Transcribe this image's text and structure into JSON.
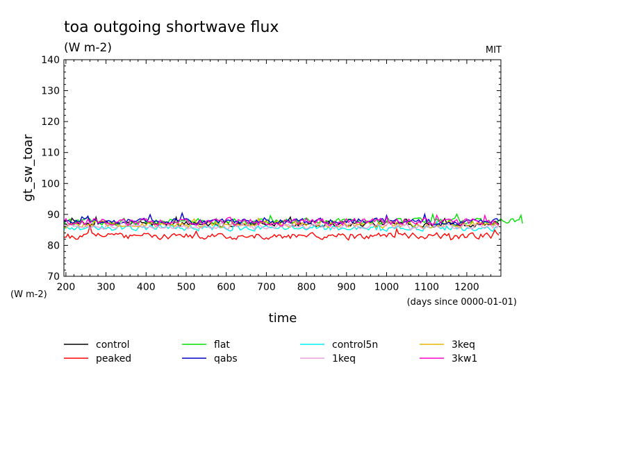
{
  "chart_data": {
    "type": "line",
    "title": "toa outgoing shortwave flux",
    "subtitle": "(W m-2)",
    "corner_label": "MIT",
    "ylabel": "gt_sw_toar",
    "xlabel": "time",
    "y_units_label": "(W m-2)",
    "x_units_label": "(days since 0000-01-01)",
    "xlim": [
      195,
      1285
    ],
    "ylim": [
      70,
      140
    ],
    "xticks": [
      200,
      300,
      400,
      500,
      600,
      700,
      800,
      900,
      1000,
      1100,
      1200
    ],
    "yticks": [
      70,
      80,
      90,
      100,
      110,
      120,
      130,
      140
    ],
    "x": {
      "start": 195,
      "end": 1280,
      "step": 5
    },
    "series": [
      {
        "name": "control",
        "color": "#000000",
        "mean": 87.0,
        "amp": 1.4,
        "start": 195,
        "end": 1280
      },
      {
        "name": "flat",
        "color": "#00e000",
        "mean": 87.6,
        "amp": 1.5,
        "start": 195,
        "end": 1350
      },
      {
        "name": "control5n",
        "color": "#00f0f0",
        "mean": 85.6,
        "amp": 1.3,
        "start": 195,
        "end": 1280
      },
      {
        "name": "3keq",
        "color": "#e8b400",
        "mean": 86.8,
        "amp": 1.5,
        "start": 195,
        "end": 1280
      },
      {
        "name": "peaked",
        "color": "#ff0000",
        "mean": 83.0,
        "amp": 1.4,
        "start": 195,
        "end": 1280
      },
      {
        "name": "qabs",
        "color": "#0000cc",
        "mean": 87.8,
        "amp": 1.3,
        "start": 195,
        "end": 1280
      },
      {
        "name": "1keq",
        "color": "#e8a0d8",
        "mean": 86.2,
        "amp": 1.2,
        "start": 195,
        "end": 1280
      },
      {
        "name": "3kw1",
        "color": "#ff00c8",
        "mean": 87.6,
        "amp": 1.6,
        "start": 195,
        "end": 1280
      }
    ]
  }
}
